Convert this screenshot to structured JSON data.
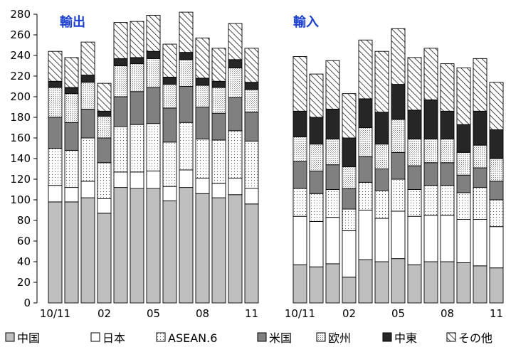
{
  "chart_data": {
    "type": "bar",
    "stacked": true,
    "ylim": [
      0,
      280
    ],
    "yticks": [
      0,
      20,
      40,
      60,
      80,
      100,
      120,
      140,
      160,
      180,
      200,
      220,
      240,
      260,
      280
    ],
    "x_tick_labels": [
      "10/11",
      "02",
      "05",
      "08",
      "11"
    ],
    "grid": false,
    "legend_position": "bottom",
    "colors": {
      "china": "#bfbfbf",
      "japan": "#ffffff",
      "asean6": "#ffffff",
      "usa": "#808080",
      "europe": "#ffffff",
      "middle_east": "#262626",
      "other": "#ffffff"
    },
    "legend": [
      "中国",
      "日本",
      "ASEAN.6",
      "米国",
      "欧州",
      "中東",
      "その他"
    ],
    "panels": [
      {
        "title": "輸出",
        "categories": [
          "10/11",
          "10/12",
          "11/01",
          "11/02",
          "11/03",
          "11/04",
          "11/05",
          "11/06",
          "11/07",
          "11/08",
          "11/09",
          "11/10",
          "11/11"
        ],
        "series": [
          {
            "name": "中国",
            "values": [
              98,
              98,
              102,
              87,
              112,
              111,
              111,
              99,
              112,
              106,
              102,
              105,
              96
            ]
          },
          {
            "name": "日本",
            "values": [
              16,
              14,
              16,
              14,
              15,
              16,
              17,
              14,
              17,
              15,
              14,
              16,
              15
            ]
          },
          {
            "name": "ASEAN.6",
            "values": [
              36,
              36,
              42,
              35,
              44,
              46,
              46,
              43,
              46,
              38,
              42,
              46,
              46
            ]
          },
          {
            "name": "米国",
            "values": [
              30,
              27,
              28,
              24,
              29,
              32,
              35,
              33,
              35,
              31,
              26,
              32,
              28
            ]
          },
          {
            "name": "欧州",
            "values": [
              29,
              28,
              26,
              21,
              30,
              27,
              28,
              23,
              26,
              21,
              25,
              29,
              22
            ]
          },
          {
            "name": "中東",
            "values": [
              6,
              6,
              7,
              5,
              7,
              6,
              7,
              7,
              7,
              7,
              6,
              8,
              7
            ]
          },
          {
            "name": "その他",
            "values": [
              29,
              29,
              32,
              27,
              35,
              35,
              35,
              32,
              39,
              39,
              32,
              35,
              33
            ]
          }
        ]
      },
      {
        "title": "輸入",
        "categories": [
          "10/11",
          "10/12",
          "11/01",
          "11/02",
          "11/03",
          "11/04",
          "11/05",
          "11/06",
          "11/07",
          "11/08",
          "11/09",
          "11/10",
          "11/11"
        ],
        "series": [
          {
            "name": "中国",
            "values": [
              37,
              35,
              38,
              25,
              42,
              40,
              43,
              37,
              40,
              40,
              39,
              36,
              34
            ]
          },
          {
            "name": "日本",
            "values": [
              47,
              44,
              45,
              45,
              48,
              42,
              46,
              47,
              45,
              45,
              42,
              45,
              40
            ]
          },
          {
            "name": "ASEAN.6",
            "values": [
              27,
              27,
              27,
              21,
              27,
              27,
              31,
              26,
              29,
              29,
              26,
              31,
              26
            ]
          },
          {
            "name": "米国",
            "values": [
              26,
              22,
              24,
              20,
              25,
              21,
              26,
              23,
              22,
              22,
              17,
              19,
              18
            ]
          },
          {
            "name": "欧州",
            "values": [
              24,
              26,
              25,
              21,
              28,
              24,
              32,
              26,
              23,
              23,
              22,
              22,
              22
            ]
          },
          {
            "name": "中東",
            "values": [
              25,
              26,
              29,
              28,
              28,
              31,
              34,
              28,
              38,
              27,
              27,
              33,
              28
            ]
          },
          {
            "name": "その他",
            "values": [
              53,
              42,
              47,
              43,
              57,
              59,
              54,
              51,
              50,
              46,
              55,
              51,
              46
            ]
          }
        ]
      }
    ]
  }
}
